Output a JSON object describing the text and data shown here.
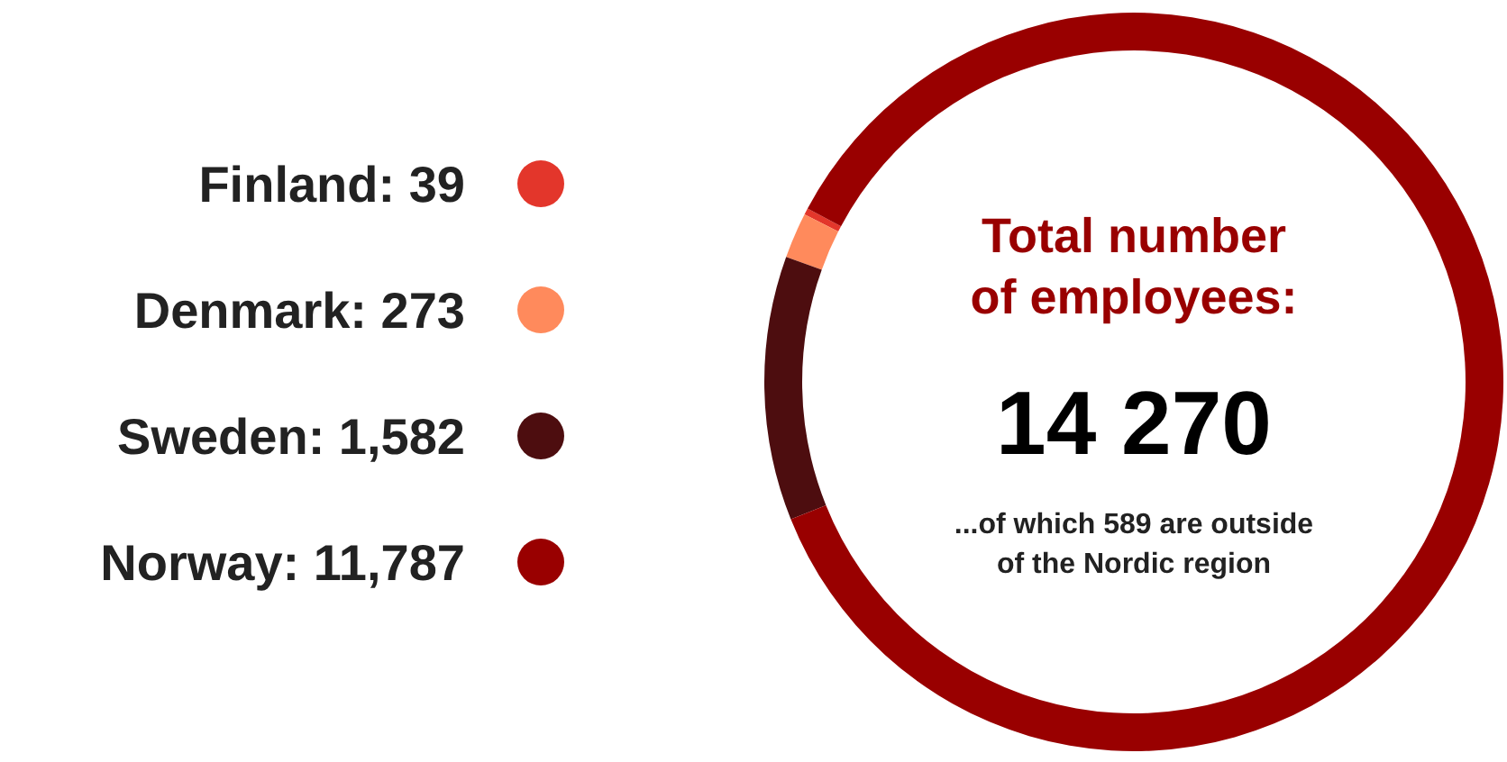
{
  "chart_data": {
    "type": "donut",
    "title": "Total number of employees:",
    "categories": [
      "Finland",
      "Denmark",
      "Sweden",
      "Norway"
    ],
    "values": [
      39,
      273,
      1582,
      11787
    ],
    "value_labels": [
      "39",
      "273",
      "1,582",
      "11,787"
    ],
    "colors": [
      "#e3362b",
      "#ff8a5c",
      "#4d0d0f",
      "#990000"
    ],
    "legend": "left",
    "annotations": [
      "14 270",
      "...of which 589 are outside of the Nordic region"
    ]
  }
}
